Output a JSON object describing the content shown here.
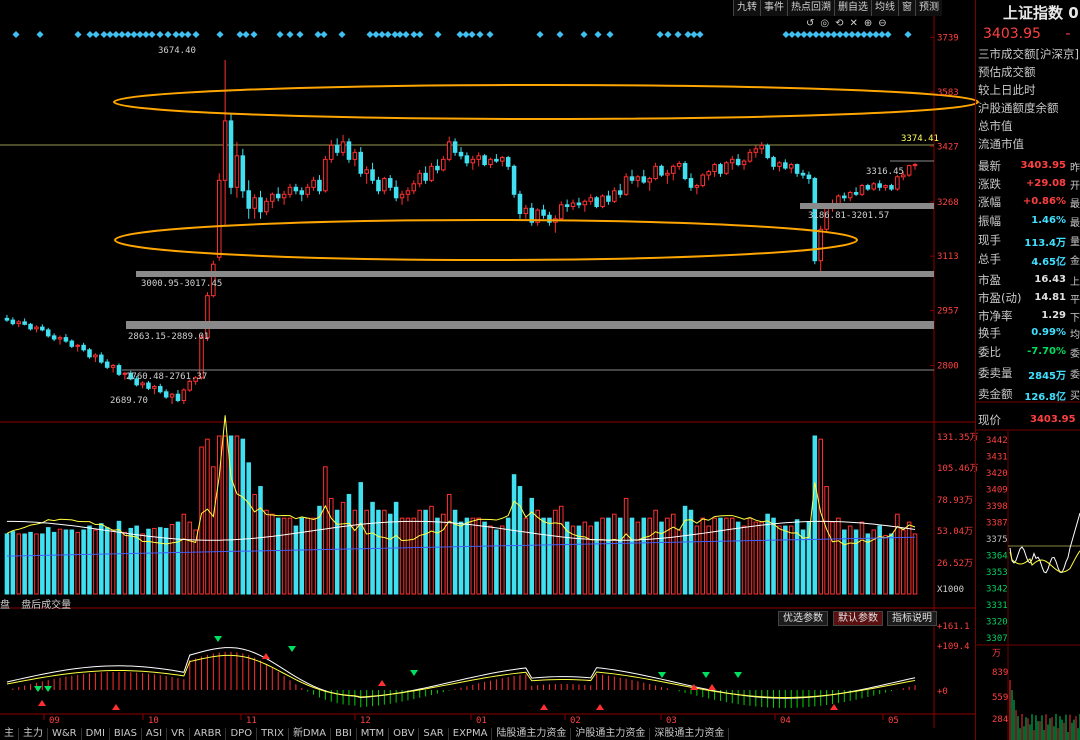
{
  "toolbar": {
    "buttons": [
      "九转",
      "事件",
      "热点回溯",
      "删自选",
      "均线",
      "窗",
      "预测"
    ],
    "icons": [
      "history-icon",
      "eye-icon",
      "reset-icon",
      "close-icon",
      "zoom-in-icon",
      "zoom-out-icon"
    ]
  },
  "price_axis": {
    "labels": [
      "3739",
      "3583",
      "3427",
      "3268",
      "3113",
      "2957",
      "2800"
    ]
  },
  "volume_axis": {
    "labels": [
      "131.35万",
      "105.46万",
      "78.93万",
      "53.04万",
      "26.52万"
    ],
    "unit": "X1000"
  },
  "indicator_axis": {
    "labels": [
      "+161.1",
      "+109.4",
      "+0"
    ]
  },
  "month_labels": [
    "09",
    "10",
    "11",
    "12",
    "01",
    "02",
    "03",
    "04",
    "05"
  ],
  "annotations": {
    "high": "3674.40",
    "low": "2689.70",
    "last": "3374.41",
    "level_a": "3316.45",
    "gap_1": "3186.81-3201.57",
    "gap_2": "3000.95-3017.45",
    "gap_3": "2863.15-2889.01",
    "gap_4": "2760.48-2761.37"
  },
  "volume_header": {
    "left_label": "盘",
    "label": "盘后成交量"
  },
  "param_buttons": [
    "优选参数",
    "默认参数",
    "指标说明"
  ],
  "tabs": [
    "W&R",
    "DMI",
    "BIAS",
    "ASI",
    "VR",
    "ARBR",
    "DPO",
    "TRIX",
    "新DMA",
    "BBI",
    "MTM",
    "OBV",
    "SAR",
    "EXPMA",
    "陆股通主力资金",
    "沪股通主力资金",
    "深股通主力资金"
  ],
  "tab_prefix": [
    "主",
    "主力"
  ],
  "panel": {
    "title": "上证指数 0",
    "price": "3403.95",
    "price_suffix": "-",
    "info_lines": [
      "三市成交额[沪深京]",
      "预估成交额",
      "较上日此时",
      "沪股通额度余额",
      "总市值",
      "流通市值"
    ],
    "stats": [
      {
        "label": "最新",
        "value": "3403.95",
        "ext": "昨",
        "color": "red"
      },
      {
        "label": "涨跌",
        "value": "+29.08",
        "ext": "开",
        "color": "red"
      },
      {
        "label": "涨幅",
        "value": "+0.86%",
        "ext": "最",
        "color": "red"
      },
      {
        "label": "振幅",
        "value": "1.46%",
        "ext": "最",
        "color": "cyan"
      },
      {
        "label": "现手",
        "value": "113.4万",
        "ext": "量",
        "color": "cyan"
      },
      {
        "label": "总手",
        "value": "4.65亿",
        "ext": "金",
        "color": "cyan"
      },
      {
        "label": "市盈",
        "value": "16.43",
        "ext": "上",
        "color": "white"
      },
      {
        "label": "市盈(动)",
        "value": "14.81",
        "ext": "平",
        "color": "white"
      },
      {
        "label": "市净率",
        "value": "1.29",
        "ext": "下",
        "color": "white"
      },
      {
        "label": "换手",
        "value": "0.99%",
        "ext": "均",
        "color": "cyan"
      },
      {
        "label": "委比",
        "value": "-7.70%",
        "ext": "委",
        "color": "green"
      },
      {
        "label": "委卖量",
        "value": "2845万",
        "ext": "委",
        "color": "cyan"
      },
      {
        "label": "卖金额",
        "value": "126.8亿",
        "ext": "买",
        "color": "cyan"
      }
    ],
    "current_price_label": "现价",
    "current_price": "3403.95",
    "mini_axis": [
      "3442",
      "3431",
      "3420",
      "3409",
      "3398",
      "3387",
      "3375",
      "3364",
      "3353",
      "3342",
      "3331",
      "3320",
      "3307"
    ],
    "mini_vol_axis": [
      "万",
      "839",
      "559",
      "284"
    ]
  },
  "colors": {
    "up": "#ff3030",
    "down": "#40e0f0",
    "bg": "#000000",
    "grid": "#700000",
    "ellipse": "#ffa500"
  },
  "chart_data": {
    "type": "candlestick",
    "price_range": [
      2650,
      3760
    ],
    "series_note": "Daily Shanghai Composite candles, Aug to May; ohlc per day",
    "candles": [
      [
        2935,
        2945,
        2925,
        2930
      ],
      [
        2930,
        2938,
        2915,
        2920
      ],
      [
        2920,
        2930,
        2910,
        2925
      ],
      [
        2925,
        2935,
        2915,
        2918
      ],
      [
        2918,
        2922,
        2900,
        2905
      ],
      [
        2905,
        2915,
        2895,
        2910
      ],
      [
        2910,
        2918,
        2898,
        2902
      ],
      [
        2902,
        2908,
        2880,
        2885
      ],
      [
        2885,
        2892,
        2870,
        2876
      ],
      [
        2876,
        2886,
        2860,
        2880
      ],
      [
        2880,
        2890,
        2865,
        2870
      ],
      [
        2870,
        2875,
        2850,
        2855
      ],
      [
        2855,
        2862,
        2840,
        2858
      ],
      [
        2858,
        2865,
        2840,
        2845
      ],
      [
        2845,
        2850,
        2820,
        2825
      ],
      [
        2825,
        2835,
        2810,
        2830
      ],
      [
        2830,
        2838,
        2805,
        2810
      ],
      [
        2810,
        2818,
        2790,
        2795
      ],
      [
        2795,
        2805,
        2780,
        2800
      ],
      [
        2800,
        2806,
        2770,
        2775
      ],
      [
        2775,
        2782,
        2760,
        2778
      ],
      [
        2778,
        2785,
        2758,
        2762
      ],
      [
        2762,
        2770,
        2740,
        2745
      ],
      [
        2745,
        2755,
        2735,
        2750
      ],
      [
        2750,
        2756,
        2730,
        2735
      ],
      [
        2735,
        2745,
        2718,
        2740
      ],
      [
        2740,
        2748,
        2720,
        2725
      ],
      [
        2725,
        2732,
        2705,
        2710
      ],
      [
        2710,
        2722,
        2690,
        2718
      ],
      [
        2718,
        2730,
        2695,
        2700
      ],
      [
        2700,
        2735,
        2690,
        2730
      ],
      [
        2730,
        2760,
        2725,
        2755
      ],
      [
        2755,
        2770,
        2745,
        2765
      ],
      [
        2765,
        2890,
        2760,
        2880
      ],
      [
        2880,
        3010,
        2870,
        3000
      ],
      [
        3000,
        3100,
        2995,
        3090
      ],
      [
        3110,
        3350,
        3100,
        3330
      ],
      [
        3330,
        3674,
        3200,
        3500
      ],
      [
        3500,
        3520,
        3290,
        3310
      ],
      [
        3310,
        3440,
        3280,
        3400
      ],
      [
        3400,
        3420,
        3280,
        3300
      ],
      [
        3300,
        3330,
        3220,
        3250
      ],
      [
        3250,
        3290,
        3220,
        3280
      ],
      [
        3280,
        3300,
        3220,
        3240
      ],
      [
        3240,
        3280,
        3230,
        3270
      ],
      [
        3270,
        3295,
        3250,
        3290
      ],
      [
        3290,
        3310,
        3270,
        3280
      ],
      [
        3280,
        3300,
        3260,
        3290
      ],
      [
        3290,
        3320,
        3280,
        3310
      ],
      [
        3310,
        3320,
        3290,
        3300
      ],
      [
        3300,
        3310,
        3270,
        3290
      ],
      [
        3290,
        3320,
        3280,
        3310
      ],
      [
        3310,
        3340,
        3300,
        3330
      ],
      [
        3330,
        3345,
        3290,
        3300
      ],
      [
        3300,
        3400,
        3295,
        3390
      ],
      [
        3390,
        3445,
        3380,
        3430
      ],
      [
        3430,
        3450,
        3400,
        3410
      ],
      [
        3410,
        3460,
        3400,
        3440
      ],
      [
        3440,
        3450,
        3380,
        3390
      ],
      [
        3390,
        3420,
        3370,
        3410
      ],
      [
        3410,
        3425,
        3340,
        3350
      ],
      [
        3350,
        3370,
        3320,
        3360
      ],
      [
        3360,
        3380,
        3320,
        3330
      ],
      [
        3330,
        3340,
        3290,
        3300
      ],
      [
        3300,
        3340,
        3290,
        3335
      ],
      [
        3335,
        3345,
        3300,
        3310
      ],
      [
        3310,
        3330,
        3270,
        3280
      ],
      [
        3280,
        3300,
        3260,
        3290
      ],
      [
        3290,
        3310,
        3270,
        3300
      ],
      [
        3300,
        3330,
        3290,
        3320
      ],
      [
        3320,
        3360,
        3310,
        3350
      ],
      [
        3350,
        3370,
        3320,
        3330
      ],
      [
        3330,
        3380,
        3325,
        3370
      ],
      [
        3370,
        3390,
        3350,
        3360
      ],
      [
        3360,
        3400,
        3355,
        3390
      ],
      [
        3390,
        3455,
        3385,
        3440
      ],
      [
        3440,
        3450,
        3400,
        3410
      ],
      [
        3410,
        3425,
        3390,
        3400
      ],
      [
        3400,
        3410,
        3370,
        3380
      ],
      [
        3380,
        3400,
        3360,
        3390
      ],
      [
        3390,
        3410,
        3370,
        3400
      ],
      [
        3400,
        3405,
        3370,
        3375
      ],
      [
        3375,
        3395,
        3365,
        3390
      ],
      [
        3390,
        3405,
        3380,
        3385
      ],
      [
        3385,
        3400,
        3370,
        3395
      ],
      [
        3395,
        3400,
        3360,
        3370
      ],
      [
        3370,
        3375,
        3280,
        3290
      ],
      [
        3290,
        3300,
        3220,
        3235
      ],
      [
        3235,
        3260,
        3220,
        3250
      ],
      [
        3250,
        3265,
        3200,
        3210
      ],
      [
        3210,
        3250,
        3200,
        3245
      ],
      [
        3245,
        3260,
        3220,
        3230
      ],
      [
        3230,
        3240,
        3200,
        3210
      ],
      [
        3210,
        3230,
        3180,
        3220
      ],
      [
        3220,
        3270,
        3215,
        3260
      ],
      [
        3260,
        3275,
        3240,
        3255
      ],
      [
        3255,
        3275,
        3245,
        3265
      ],
      [
        3265,
        3280,
        3250,
        3260
      ],
      [
        3260,
        3275,
        3240,
        3270
      ],
      [
        3270,
        3290,
        3260,
        3280
      ],
      [
        3280,
        3285,
        3250,
        3255
      ],
      [
        3255,
        3290,
        3250,
        3285
      ],
      [
        3285,
        3300,
        3260,
        3270
      ],
      [
        3270,
        3310,
        3265,
        3300
      ],
      [
        3300,
        3320,
        3280,
        3290
      ],
      [
        3290,
        3350,
        3285,
        3340
      ],
      [
        3340,
        3360,
        3320,
        3330
      ],
      [
        3330,
        3345,
        3310,
        3340
      ],
      [
        3340,
        3360,
        3320,
        3325
      ],
      [
        3325,
        3340,
        3300,
        3335
      ],
      [
        3335,
        3380,
        3330,
        3370
      ],
      [
        3370,
        3375,
        3340,
        3345
      ],
      [
        3345,
        3360,
        3320,
        3350
      ],
      [
        3350,
        3375,
        3330,
        3370
      ],
      [
        3370,
        3385,
        3360,
        3378
      ],
      [
        3378,
        3385,
        3330,
        3335
      ],
      [
        3335,
        3350,
        3300,
        3310
      ],
      [
        3310,
        3320,
        3290,
        3315
      ],
      [
        3315,
        3350,
        3310,
        3345
      ],
      [
        3345,
        3360,
        3330,
        3355
      ],
      [
        3355,
        3380,
        3340,
        3375
      ],
      [
        3375,
        3380,
        3340,
        3350
      ],
      [
        3350,
        3385,
        3345,
        3380
      ],
      [
        3380,
        3400,
        3360,
        3390
      ],
      [
        3390,
        3405,
        3370,
        3375
      ],
      [
        3375,
        3390,
        3360,
        3385
      ],
      [
        3385,
        3420,
        3380,
        3410
      ],
      [
        3410,
        3430,
        3395,
        3420
      ],
      [
        3420,
        3440,
        3405,
        3430
      ],
      [
        3430,
        3435,
        3390,
        3395
      ],
      [
        3395,
        3400,
        3360,
        3370
      ],
      [
        3370,
        3385,
        3355,
        3380
      ],
      [
        3380,
        3390,
        3360,
        3365
      ],
      [
        3365,
        3380,
        3350,
        3375
      ],
      [
        3375,
        3378,
        3340,
        3350
      ],
      [
        3350,
        3360,
        3335,
        3345
      ],
      [
        3345,
        3355,
        3320,
        3335
      ],
      [
        3335,
        3340,
        3090,
        3100
      ],
      [
        3100,
        3200,
        3060,
        3190
      ],
      [
        3190,
        3260,
        3180,
        3250
      ],
      [
        3250,
        3275,
        3240,
        3260
      ],
      [
        3260,
        3290,
        3250,
        3285
      ],
      [
        3285,
        3295,
        3270,
        3280
      ],
      [
        3280,
        3300,
        3270,
        3295
      ],
      [
        3295,
        3310,
        3285,
        3290
      ],
      [
        3290,
        3320,
        3285,
        3315
      ],
      [
        3315,
        3320,
        3300,
        3305
      ],
      [
        3305,
        3325,
        3300,
        3320
      ],
      [
        3320,
        3330,
        3300,
        3310
      ],
      [
        3310,
        3318,
        3300,
        3315
      ],
      [
        3315,
        3320,
        3300,
        3305
      ],
      [
        3305,
        3345,
        3300,
        3340
      ],
      [
        3340,
        3355,
        3330,
        3345
      ],
      [
        3345,
        3375,
        3340,
        3372
      ],
      [
        3372,
        3380,
        3360,
        3375
      ]
    ]
  }
}
